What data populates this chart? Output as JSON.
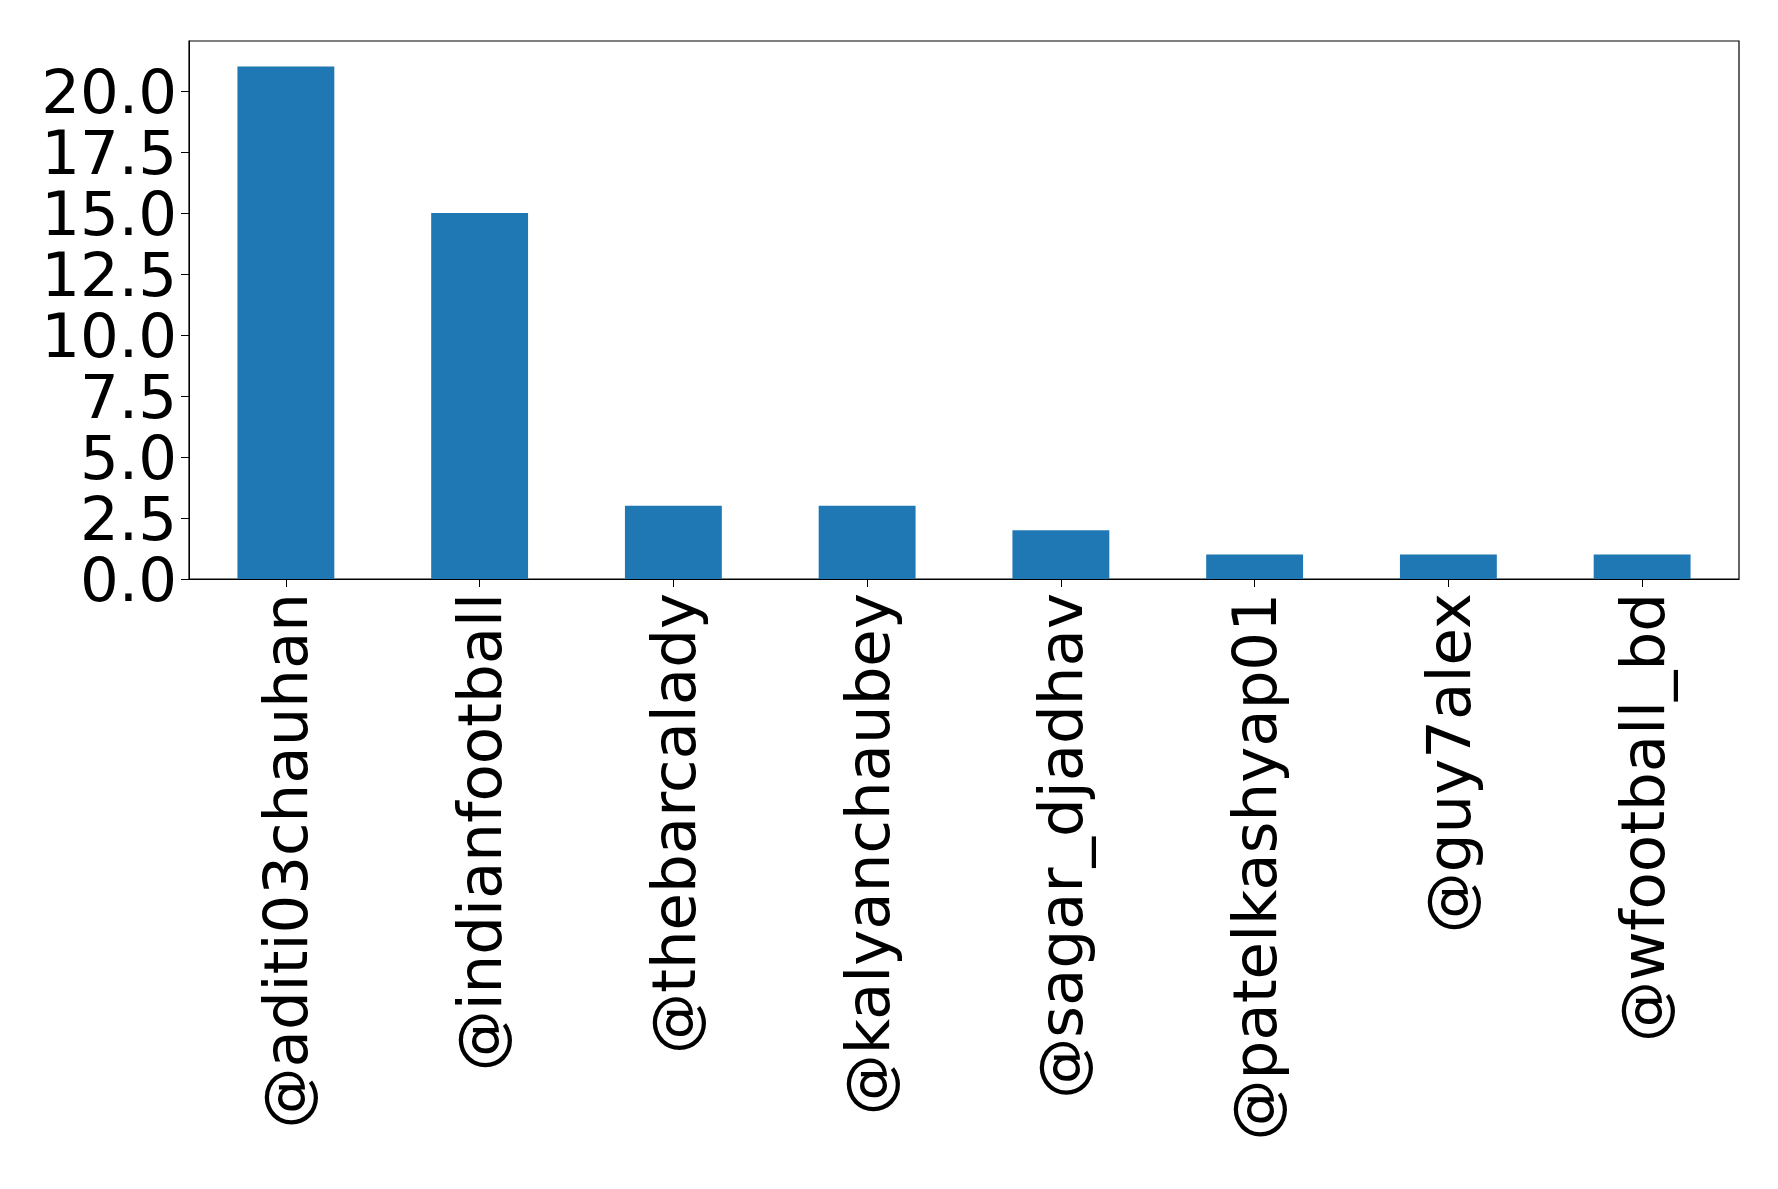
{
  "chart_data": {
    "type": "bar",
    "categories": [
      "@aditi03chauhan",
      "@indianfootball",
      "@thebarcalady",
      "@kalyanchaubey",
      "@sagar_djadhav",
      "@patelkashyap01",
      "@guy7alex",
      "@wfootball_bd"
    ],
    "values": [
      21,
      15,
      3,
      3,
      2,
      1,
      1,
      1
    ],
    "color": "#1f77b4",
    "ylim": [
      0,
      22.05
    ],
    "yticks": [
      {
        "value": 0,
        "label": "0.0"
      },
      {
        "value": 2.5,
        "label": "2.5"
      },
      {
        "value": 5,
        "label": "5.0"
      },
      {
        "value": 7.5,
        "label": "7.5"
      },
      {
        "value": 10,
        "label": "10.0"
      },
      {
        "value": 12.5,
        "label": "12.5"
      },
      {
        "value": 15,
        "label": "15.0"
      },
      {
        "value": 17.5,
        "label": "17.5"
      },
      {
        "value": 20,
        "label": "20.0"
      }
    ],
    "grid": false
  }
}
